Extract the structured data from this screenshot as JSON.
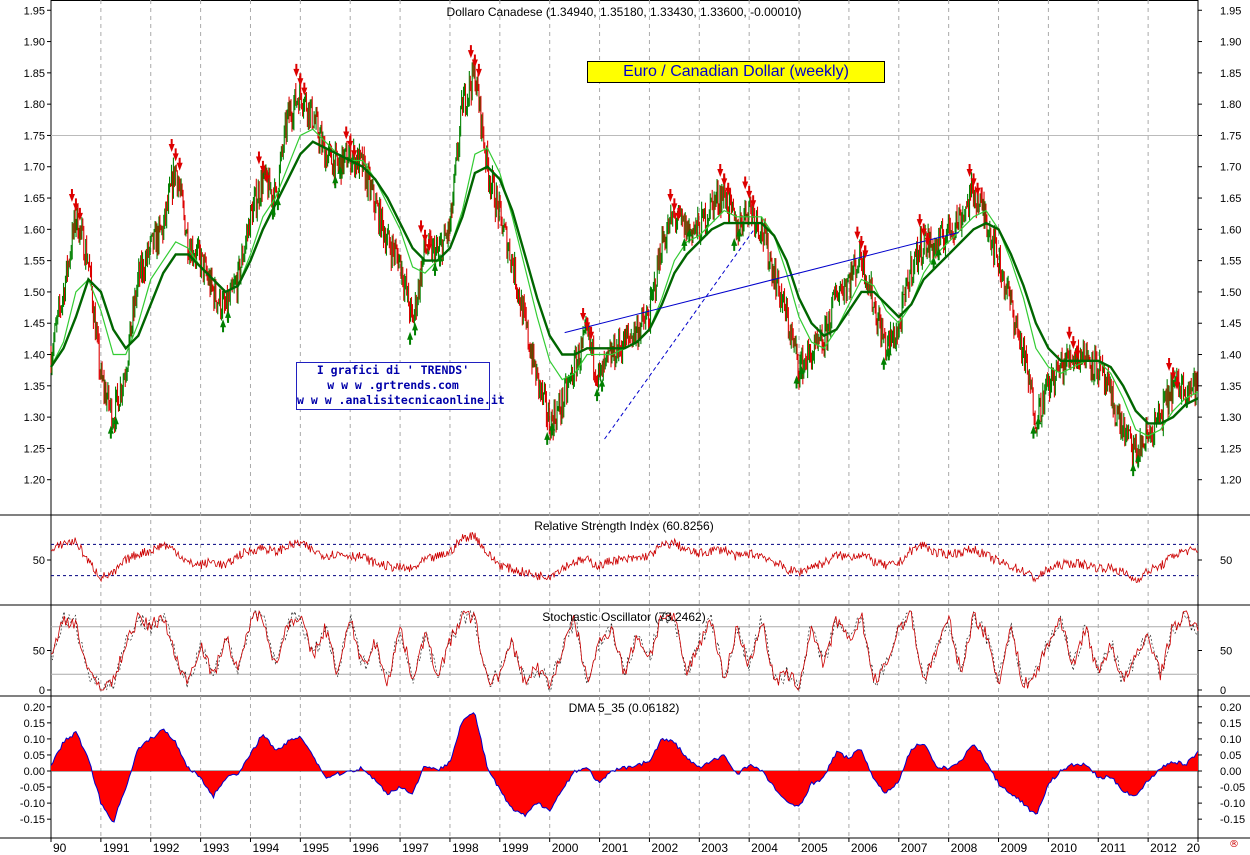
{
  "banner": "Euro / Canadian Dollar (weekly)",
  "watermark": {
    "line1": "I grafici di ' TRENDS'",
    "line2": "w w w .grtrends.com",
    "line3": "w w w .analisitecnicaonline.it"
  },
  "corner_mark": "®",
  "colors": {
    "up": "#008000",
    "down": "#dd0000",
    "ma_fast": "#33cc33",
    "ma_slow": "#006600",
    "trendline": "#0000cc",
    "osc": "#cc0000",
    "dma_fill": "#ff0000",
    "dma_line": "#0000cc",
    "ref_line": "#000080"
  },
  "chart_data": [
    {
      "type": "line",
      "panel": "price",
      "title": "Dollaro Canadese (1.34940, 1.35180, 1.33430, 1.33600, -0.00010)",
      "y_ticks": [
        "1.95",
        "1.90",
        "1.85",
        "1.80",
        "1.75",
        "1.70",
        "1.65",
        "1.60",
        "1.55",
        "1.50",
        "1.45",
        "1.40",
        "1.35",
        "1.30",
        "1.25",
        "1.20"
      ],
      "ylim": [
        1.15,
        1.96
      ],
      "x_ticks": [
        "90",
        "1991",
        "1992",
        "1993",
        "1994",
        "1995",
        "1996",
        "1997",
        "1998",
        "1999",
        "2000",
        "2001",
        "2002",
        "2003",
        "2004",
        "2005",
        "2006",
        "2007",
        "2008",
        "2009",
        "2010",
        "2011",
        "2012",
        "20"
      ],
      "xlim": [
        1990.0,
        2013.0
      ],
      "x": [
        1990.0,
        1990.25,
        1990.5,
        1990.75,
        1991.0,
        1991.25,
        1991.5,
        1991.75,
        1992.0,
        1992.25,
        1992.5,
        1992.75,
        1993.0,
        1993.25,
        1993.5,
        1993.75,
        1994.0,
        1994.25,
        1994.5,
        1994.75,
        1995.0,
        1995.25,
        1995.5,
        1995.75,
        1996.0,
        1996.25,
        1996.5,
        1996.75,
        1997.0,
        1997.25,
        1997.5,
        1997.75,
        1998.0,
        1998.25,
        1998.5,
        1998.75,
        1999.0,
        1999.25,
        1999.5,
        1999.75,
        2000.0,
        2000.25,
        2000.5,
        2000.75,
        2001.0,
        2001.25,
        2001.5,
        2001.75,
        2002.0,
        2002.25,
        2002.5,
        2002.75,
        2003.0,
        2003.25,
        2003.5,
        2003.75,
        2004.0,
        2004.25,
        2004.5,
        2004.75,
        2005.0,
        2005.25,
        2005.5,
        2005.75,
        2006.0,
        2006.25,
        2006.5,
        2006.75,
        2007.0,
        2007.25,
        2007.5,
        2007.75,
        2008.0,
        2008.25,
        2008.5,
        2008.75,
        2009.0,
        2009.25,
        2009.5,
        2009.75,
        2010.0,
        2010.25,
        2010.5,
        2010.75,
        2011.0,
        2011.25,
        2011.5,
        2011.75,
        2012.0,
        2012.25,
        2012.5,
        2012.75,
        2013.0
      ],
      "series": [
        {
          "values": [
            1.4,
            1.5,
            1.62,
            1.55,
            1.36,
            1.3,
            1.38,
            1.52,
            1.57,
            1.6,
            1.7,
            1.58,
            1.55,
            1.5,
            1.47,
            1.52,
            1.62,
            1.68,
            1.65,
            1.78,
            1.82,
            1.78,
            1.72,
            1.7,
            1.72,
            1.7,
            1.64,
            1.58,
            1.55,
            1.45,
            1.57,
            1.56,
            1.6,
            1.8,
            1.85,
            1.7,
            1.62,
            1.55,
            1.45,
            1.36,
            1.29,
            1.32,
            1.38,
            1.43,
            1.36,
            1.4,
            1.42,
            1.44,
            1.46,
            1.58,
            1.62,
            1.6,
            1.6,
            1.64,
            1.66,
            1.6,
            1.64,
            1.6,
            1.53,
            1.46,
            1.38,
            1.4,
            1.42,
            1.5,
            1.52,
            1.56,
            1.48,
            1.41,
            1.44,
            1.54,
            1.58,
            1.57,
            1.6,
            1.62,
            1.66,
            1.62,
            1.55,
            1.48,
            1.4,
            1.3,
            1.35,
            1.38,
            1.4,
            1.4,
            1.38,
            1.33,
            1.28,
            1.24,
            1.27,
            1.3,
            1.35,
            1.35,
            1.35
          ]
        },
        {
          "values": [
            1.38,
            1.42,
            1.5,
            1.52,
            1.47,
            1.4,
            1.4,
            1.45,
            1.52,
            1.55,
            1.58,
            1.57,
            1.54,
            1.52,
            1.5,
            1.51,
            1.56,
            1.62,
            1.65,
            1.7,
            1.75,
            1.76,
            1.74,
            1.72,
            1.71,
            1.71,
            1.68,
            1.64,
            1.6,
            1.54,
            1.53,
            1.55,
            1.57,
            1.63,
            1.72,
            1.73,
            1.69,
            1.62,
            1.54,
            1.46,
            1.39,
            1.36,
            1.37,
            1.4,
            1.4,
            1.4,
            1.41,
            1.42,
            1.44,
            1.49,
            1.55,
            1.58,
            1.59,
            1.61,
            1.63,
            1.62,
            1.62,
            1.62,
            1.59,
            1.53,
            1.46,
            1.42,
            1.41,
            1.44,
            1.48,
            1.52,
            1.51,
            1.47,
            1.45,
            1.48,
            1.53,
            1.56,
            1.58,
            1.6,
            1.62,
            1.63,
            1.6,
            1.55,
            1.49,
            1.41,
            1.38,
            1.37,
            1.38,
            1.39,
            1.39,
            1.37,
            1.33,
            1.28,
            1.27,
            1.28,
            1.31,
            1.33,
            1.34
          ]
        },
        {
          "values": [
            1.38,
            1.41,
            1.46,
            1.52,
            1.5,
            1.44,
            1.41,
            1.43,
            1.48,
            1.53,
            1.56,
            1.56,
            1.54,
            1.52,
            1.5,
            1.51,
            1.55,
            1.6,
            1.64,
            1.68,
            1.72,
            1.74,
            1.73,
            1.72,
            1.71,
            1.7,
            1.68,
            1.65,
            1.61,
            1.57,
            1.55,
            1.55,
            1.57,
            1.62,
            1.69,
            1.7,
            1.68,
            1.63,
            1.56,
            1.49,
            1.43,
            1.4,
            1.4,
            1.41,
            1.41,
            1.41,
            1.41,
            1.42,
            1.44,
            1.48,
            1.53,
            1.56,
            1.58,
            1.6,
            1.61,
            1.61,
            1.61,
            1.61,
            1.59,
            1.55,
            1.49,
            1.45,
            1.43,
            1.44,
            1.47,
            1.5,
            1.5,
            1.48,
            1.46,
            1.48,
            1.52,
            1.54,
            1.56,
            1.58,
            1.6,
            1.61,
            1.6,
            1.56,
            1.51,
            1.45,
            1.41,
            1.39,
            1.39,
            1.39,
            1.39,
            1.38,
            1.35,
            1.31,
            1.29,
            1.29,
            1.3,
            1.32,
            1.33
          ]
        }
      ],
      "trendlines": [
        {
          "from": [
            2000.3,
            1.435
          ],
          "to": [
            2008.2,
            1.595
          ]
        },
        {
          "from": [
            2001.1,
            1.265
          ],
          "to": [
            2004.1,
            1.6
          ]
        }
      ]
    },
    {
      "type": "line",
      "panel": "rsi",
      "title": "Relative Strength Index (60.8256)",
      "y_ticks": [
        "50"
      ],
      "ylim": [
        0,
        100
      ],
      "levels": [
        70,
        30
      ],
      "x": [
        1990.0,
        1990.25,
        1990.5,
        1990.75,
        1991.0,
        1991.25,
        1991.5,
        1991.75,
        1992.0,
        1992.25,
        1992.5,
        1992.75,
        1993.0,
        1993.25,
        1993.5,
        1993.75,
        1994.0,
        1994.25,
        1994.5,
        1994.75,
        1995.0,
        1995.25,
        1995.5,
        1995.75,
        1996.0,
        1996.25,
        1996.5,
        1996.75,
        1997.0,
        1997.25,
        1997.5,
        1997.75,
        1998.0,
        1998.25,
        1998.5,
        1998.75,
        1999.0,
        1999.25,
        1999.5,
        1999.75,
        2000.0,
        2000.25,
        2000.5,
        2000.75,
        2001.0,
        2001.25,
        2001.5,
        2001.75,
        2002.0,
        2002.25,
        2002.5,
        2002.75,
        2003.0,
        2003.25,
        2003.5,
        2003.75,
        2004.0,
        2004.25,
        2004.5,
        2004.75,
        2005.0,
        2005.25,
        2005.5,
        2005.75,
        2006.0,
        2006.25,
        2006.5,
        2006.75,
        2007.0,
        2007.25,
        2007.5,
        2007.75,
        2008.0,
        2008.25,
        2008.5,
        2008.75,
        2009.0,
        2009.25,
        2009.5,
        2009.75,
        2010.0,
        2010.25,
        2010.5,
        2010.75,
        2011.0,
        2011.25,
        2011.5,
        2011.75,
        2012.0,
        2012.25,
        2012.5,
        2012.75,
        2013.0
      ],
      "values": [
        60,
        72,
        74,
        48,
        28,
        32,
        50,
        58,
        62,
        70,
        62,
        46,
        44,
        48,
        42,
        56,
        62,
        66,
        60,
        68,
        72,
        62,
        56,
        58,
        56,
        54,
        46,
        42,
        40,
        38,
        50,
        54,
        60,
        78,
        82,
        58,
        44,
        38,
        34,
        30,
        30,
        40,
        48,
        50,
        42,
        50,
        50,
        52,
        56,
        68,
        72,
        62,
        58,
        62,
        64,
        54,
        58,
        56,
        48,
        38,
        34,
        42,
        46,
        56,
        54,
        58,
        48,
        42,
        46,
        62,
        70,
        58,
        58,
        60,
        64,
        56,
        48,
        42,
        36,
        26,
        38,
        44,
        46,
        44,
        40,
        40,
        34,
        24,
        36,
        42,
        56,
        62,
        61
      ]
    },
    {
      "type": "line",
      "panel": "stochastic",
      "title": "Stochastic Oscillator (73.2462)",
      "y_ticks": [
        "50",
        "0"
      ],
      "ylim": [
        0,
        100
      ],
      "levels": [
        80,
        20
      ],
      "x": [
        1990.0,
        1990.25,
        1990.5,
        1990.75,
        1991.0,
        1991.25,
        1991.5,
        1991.75,
        1992.0,
        1992.25,
        1992.5,
        1992.75,
        1993.0,
        1993.25,
        1993.5,
        1993.75,
        1994.0,
        1994.25,
        1994.5,
        1994.75,
        1995.0,
        1995.25,
        1995.5,
        1995.75,
        1996.0,
        1996.25,
        1996.5,
        1996.75,
        1997.0,
        1997.25,
        1997.5,
        1997.75,
        1998.0,
        1998.25,
        1998.5,
        1998.75,
        1999.0,
        1999.25,
        1999.5,
        1999.75,
        2000.0,
        2000.25,
        2000.5,
        2000.75,
        2001.0,
        2001.25,
        2001.5,
        2001.75,
        2002.0,
        2002.25,
        2002.5,
        2002.75,
        2003.0,
        2003.25,
        2003.5,
        2003.75,
        2004.0,
        2004.25,
        2004.5,
        2004.75,
        2005.0,
        2005.25,
        2005.5,
        2005.75,
        2006.0,
        2006.25,
        2006.5,
        2006.75,
        2007.0,
        2007.25,
        2007.5,
        2007.75,
        2008.0,
        2008.25,
        2008.5,
        2008.75,
        2009.0,
        2009.25,
        2009.5,
        2009.75,
        2010.0,
        2010.25,
        2010.5,
        2010.75,
        2011.0,
        2011.25,
        2011.5,
        2011.75,
        2012.0,
        2012.25,
        2012.5,
        2012.75,
        2013.0
      ],
      "values": [
        40,
        90,
        85,
        20,
        5,
        10,
        60,
        90,
        80,
        95,
        40,
        10,
        60,
        15,
        70,
        20,
        90,
        95,
        30,
        85,
        95,
        40,
        80,
        20,
        90,
        30,
        60,
        10,
        80,
        15,
        70,
        20,
        60,
        95,
        90,
        10,
        20,
        60,
        10,
        30,
        5,
        50,
        90,
        10,
        60,
        80,
        20,
        70,
        40,
        95,
        90,
        20,
        60,
        90,
        10,
        80,
        30,
        90,
        10,
        20,
        5,
        80,
        30,
        90,
        60,
        95,
        10,
        30,
        80,
        95,
        10,
        50,
        90,
        20,
        95,
        70,
        10,
        80,
        5,
        20,
        60,
        90,
        30,
        80,
        20,
        60,
        10,
        40,
        70,
        20,
        80,
        95,
        73
      ]
    },
    {
      "type": "area",
      "panel": "dma",
      "title": "DMA 5_35 (0.06182)",
      "y_ticks": [
        "0.20",
        "0.15",
        "0.10",
        "0.05",
        "0.00",
        "-0.05",
        "-0.10",
        "-0.15"
      ],
      "ylim": [
        -0.19,
        0.215
      ],
      "x": [
        1990.0,
        1990.25,
        1990.5,
        1990.75,
        1991.0,
        1991.25,
        1991.5,
        1991.75,
        1992.0,
        1992.25,
        1992.5,
        1992.75,
        1993.0,
        1993.25,
        1993.5,
        1993.75,
        1994.0,
        1994.25,
        1994.5,
        1994.75,
        1995.0,
        1995.25,
        1995.5,
        1995.75,
        1996.0,
        1996.25,
        1996.5,
        1996.75,
        1997.0,
        1997.25,
        1997.5,
        1997.75,
        1998.0,
        1998.25,
        1998.5,
        1998.75,
        1999.0,
        1999.25,
        1999.5,
        1999.75,
        2000.0,
        2000.25,
        2000.5,
        2000.75,
        2001.0,
        2001.25,
        2001.5,
        2001.75,
        2002.0,
        2002.25,
        2002.5,
        2002.75,
        2003.0,
        2003.25,
        2003.5,
        2003.75,
        2004.0,
        2004.25,
        2004.5,
        2004.75,
        2005.0,
        2005.25,
        2005.5,
        2005.75,
        2006.0,
        2006.25,
        2006.5,
        2006.75,
        2007.0,
        2007.25,
        2007.5,
        2007.75,
        2008.0,
        2008.25,
        2008.5,
        2008.75,
        2009.0,
        2009.25,
        2009.5,
        2009.75,
        2010.0,
        2010.25,
        2010.5,
        2010.75,
        2011.0,
        2011.25,
        2011.5,
        2011.75,
        2012.0,
        2012.25,
        2012.5,
        2012.75,
        2013.0
      ],
      "values": [
        0.02,
        0.09,
        0.12,
        0.04,
        -0.1,
        -0.16,
        -0.05,
        0.07,
        0.1,
        0.13,
        0.09,
        0.01,
        -0.02,
        -0.08,
        -0.02,
        -0.01,
        0.05,
        0.12,
        0.06,
        0.09,
        0.11,
        0.05,
        -0.02,
        -0.01,
        0.0,
        0.01,
        -0.03,
        -0.07,
        -0.05,
        -0.07,
        0.02,
        0.0,
        0.03,
        0.16,
        0.18,
        0.01,
        -0.06,
        -0.12,
        -0.14,
        -0.1,
        -0.12,
        -0.06,
        0.0,
        0.01,
        -0.04,
        0.0,
        0.01,
        0.02,
        0.03,
        0.1,
        0.09,
        0.04,
        0.01,
        0.03,
        0.05,
        -0.01,
        0.02,
        0.0,
        -0.05,
        -0.1,
        -0.11,
        -0.04,
        -0.02,
        0.06,
        0.04,
        0.07,
        -0.03,
        -0.07,
        -0.03,
        0.07,
        0.09,
        0.01,
        0.01,
        0.03,
        0.09,
        0.03,
        -0.04,
        -0.07,
        -0.1,
        -0.14,
        -0.04,
        0.0,
        0.02,
        0.02,
        -0.02,
        -0.02,
        -0.06,
        -0.08,
        -0.03,
        0.01,
        0.03,
        0.02,
        0.06
      ]
    }
  ]
}
